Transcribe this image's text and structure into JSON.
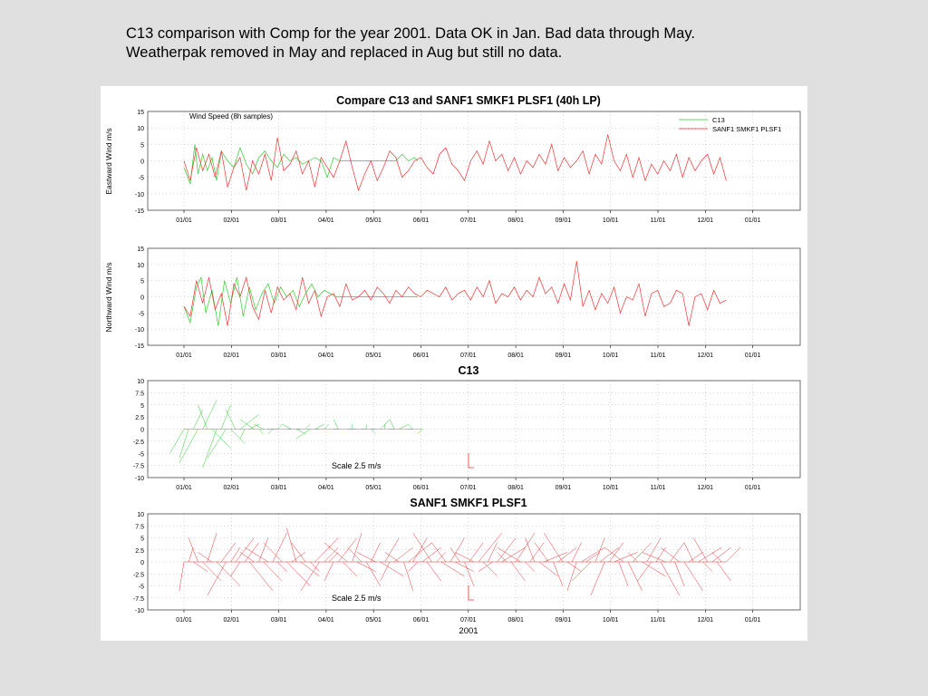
{
  "caption": {
    "line1": "C13 comparison with Comp for the year 2001. Data OK in Jan. Bad data through May.",
    "line2": "Weatherpak removed in May and replaced in Aug but still no data."
  },
  "colors": {
    "c13": "#33cc33",
    "sanf1": "#ee3333",
    "grid": "#aaaaaa"
  },
  "chart_data": [
    {
      "type": "line",
      "title": "Compare C13 and SANF1 SMKF1 PLSF1 (40h LP)",
      "annotation": "Wind Speed (8h samples)",
      "ylabel": "Eastward Wind m/s",
      "ylim": [
        -15,
        15
      ],
      "yticks": [
        "15",
        "10",
        "5",
        "0",
        "-5",
        "-10",
        "-15"
      ],
      "xticks": [
        "01/01",
        "02/01",
        "03/01",
        "04/01",
        "05/01",
        "06/01",
        "07/01",
        "08/01",
        "09/01",
        "10/01",
        "11/01",
        "12/01",
        "01/01"
      ],
      "legend_position": "top-right",
      "series": [
        {
          "name": "C13",
          "color": "#33cc33",
          "x": [
            0,
            4,
            7,
            9,
            12,
            15,
            18,
            21,
            24,
            28,
            32,
            36,
            40,
            44,
            48,
            52,
            56,
            60,
            64,
            68,
            72,
            76,
            80,
            84,
            88,
            92,
            96,
            100,
            104,
            108,
            112,
            116,
            120,
            124,
            128,
            132,
            136,
            140,
            144,
            148,
            150
          ],
          "y": [
            -2,
            -7,
            5,
            -4,
            2,
            -3,
            1,
            -6,
            3,
            0,
            -2,
            4,
            -1,
            -4,
            1,
            3,
            0,
            -2,
            2,
            0,
            1,
            -1,
            0,
            1,
            0,
            -5,
            1,
            0,
            0,
            0,
            0,
            0,
            0,
            0,
            0,
            0,
            0,
            2,
            0,
            1,
            0
          ]
        },
        {
          "name": "SANF1 SMKF1 PLSF1",
          "color": "#ee3333",
          "x": [
            0,
            4,
            8,
            12,
            16,
            20,
            24,
            28,
            32,
            36,
            40,
            44,
            48,
            52,
            56,
            60,
            64,
            68,
            72,
            76,
            80,
            84,
            88,
            92,
            96,
            100,
            104,
            108,
            112,
            116,
            120,
            124,
            128,
            132,
            136,
            140,
            144,
            148,
            152,
            156,
            160,
            164,
            168,
            172,
            176,
            180,
            184,
            188,
            192,
            196,
            200,
            204,
            208,
            212,
            216,
            220,
            224,
            228,
            232,
            236,
            240,
            244,
            248,
            252,
            256,
            260,
            264,
            268,
            272,
            276,
            280,
            284,
            288,
            292,
            296,
            300,
            304,
            308,
            312,
            316,
            320,
            324,
            328,
            332,
            336,
            340,
            344,
            348
          ],
          "y": [
            0,
            -6,
            4,
            -3,
            2,
            -5,
            3,
            -8,
            -2,
            1,
            -9,
            0,
            -4,
            2,
            -6,
            7,
            -3,
            -1,
            3,
            -4,
            0,
            -8,
            1,
            -2,
            -5,
            0,
            6,
            -2,
            -9,
            -4,
            0,
            -6,
            -2,
            3,
            1,
            -5,
            -3,
            0,
            1,
            -2,
            -4,
            2,
            4,
            -1,
            -3,
            -6,
            0,
            3,
            -1,
            6,
            0,
            2,
            -3,
            1,
            -4,
            0,
            -2,
            2,
            -1,
            5,
            -3,
            1,
            -2,
            0,
            3,
            -4,
            2,
            -1,
            8,
            0,
            -3,
            2,
            -5,
            1,
            -6,
            -1,
            -4,
            0,
            -3,
            2,
            -5,
            1,
            -3,
            0,
            2,
            -4,
            1,
            -6
          ]
        }
      ]
    },
    {
      "type": "line",
      "ylabel": "Northward Wind m/s",
      "ylim": [
        -15,
        15
      ],
      "yticks": [
        "15",
        "10",
        "5",
        "0",
        "-5",
        "-10",
        "-15"
      ],
      "xticks": [
        "01/01",
        "02/01",
        "03/01",
        "04/01",
        "05/01",
        "06/01",
        "07/01",
        "08/01",
        "09/01",
        "10/01",
        "11/01",
        "12/01",
        "01/01"
      ],
      "series": [
        {
          "name": "C13",
          "color": "#33cc33",
          "x": [
            0,
            4,
            8,
            11,
            14,
            18,
            22,
            26,
            30,
            34,
            38,
            42,
            46,
            50,
            54,
            58,
            62,
            66,
            70,
            74,
            78,
            82,
            86,
            90,
            94,
            98,
            102,
            106,
            110,
            114,
            118,
            122,
            126,
            130,
            134,
            138,
            142,
            146,
            150
          ],
          "y": [
            -3,
            -8,
            3,
            6,
            -5,
            2,
            -9,
            5,
            -2,
            6,
            -6,
            3,
            -4,
            1,
            4,
            -2,
            3,
            0,
            2,
            -3,
            1,
            4,
            0,
            2,
            1,
            0,
            0,
            0,
            0,
            0,
            0,
            0,
            0,
            0,
            0,
            0,
            0,
            0,
            0
          ]
        },
        {
          "name": "SANF1 SMKF1 PLSF1",
          "color": "#ee3333",
          "x": [
            0,
            4,
            8,
            12,
            16,
            20,
            24,
            28,
            32,
            36,
            40,
            44,
            48,
            52,
            56,
            60,
            64,
            68,
            72,
            76,
            80,
            84,
            88,
            92,
            96,
            100,
            104,
            108,
            112,
            116,
            120,
            124,
            128,
            132,
            136,
            140,
            144,
            148,
            152,
            156,
            160,
            164,
            168,
            172,
            176,
            180,
            184,
            188,
            192,
            196,
            200,
            204,
            208,
            212,
            216,
            220,
            224,
            228,
            232,
            236,
            240,
            244,
            248,
            252,
            256,
            260,
            264,
            268,
            272,
            276,
            280,
            284,
            288,
            292,
            296,
            300,
            304,
            308,
            312,
            316,
            320,
            324,
            328,
            332,
            336,
            340,
            344,
            348
          ],
          "y": [
            -3,
            -6,
            5,
            -2,
            6,
            -4,
            1,
            -9,
            4,
            0,
            6,
            -3,
            -7,
            2,
            -5,
            3,
            -1,
            1,
            -4,
            6,
            -2,
            2,
            -6,
            0,
            1,
            -3,
            4,
            -1,
            0,
            2,
            -1,
            3,
            1,
            -2,
            2,
            0,
            3,
            1,
            0,
            2,
            1,
            0,
            3,
            -1,
            1,
            2,
            -1,
            3,
            0,
            5,
            -2,
            1,
            0,
            3,
            -1,
            2,
            0,
            6,
            1,
            3,
            -2,
            4,
            -1,
            11,
            -3,
            2,
            -4,
            1,
            -2,
            3,
            -5,
            0,
            -1,
            4,
            -6,
            1,
            2,
            -3,
            -2,
            2,
            1,
            -9,
            0,
            1,
            -4,
            2,
            -2,
            -1
          ]
        }
      ]
    },
    {
      "type": "vector",
      "title": "C13",
      "scale_label": "Scale 2.5 m/s",
      "ylim": [
        -10,
        10
      ],
      "yticks": [
        "10",
        "7.5",
        "5",
        "2.5",
        "0",
        "-2.5",
        "-5",
        "-7.5",
        "-10"
      ],
      "xticks": [
        "01/01",
        "02/01",
        "03/01",
        "04/01",
        "05/01",
        "06/01",
        "07/01",
        "08/01",
        "09/01",
        "10/01",
        "11/01",
        "12/01",
        "01/01"
      ],
      "series": [
        {
          "name": "C13",
          "color": "#33cc33",
          "x": [
            0,
            3,
            6,
            9,
            12,
            15,
            18,
            21,
            24,
            27,
            30,
            33,
            36,
            39,
            42,
            45,
            48,
            51,
            54,
            57,
            60,
            63,
            66,
            69,
            72,
            75,
            78,
            81,
            84,
            87,
            90,
            93,
            96,
            99,
            102,
            105,
            108,
            111,
            114,
            117,
            120,
            123,
            126,
            129,
            132,
            135,
            138,
            141,
            144,
            147,
            150,
            153
          ],
          "u": [
            -3,
            -2,
            2,
            -4,
            3,
            -2,
            4,
            -3,
            2,
            -4,
            3,
            -2,
            4,
            -1,
            2,
            -3,
            1,
            -2,
            2,
            -1,
            1,
            0,
            1,
            -2,
            2,
            -1,
            1,
            -3,
            2,
            -1,
            1,
            0,
            1,
            -1,
            0,
            1,
            0,
            -1,
            1,
            0,
            1,
            -1,
            2,
            0,
            1,
            -1,
            2,
            0,
            1,
            -1,
            0,
            -1
          ],
          "v": [
            -5,
            -6,
            4,
            -7,
            6,
            5,
            -4,
            -8,
            5,
            -6,
            -3,
            4,
            3,
            -2,
            1,
            2,
            -1,
            1,
            0,
            -1,
            1,
            0,
            0,
            1,
            -1,
            0,
            1,
            -2,
            1,
            0,
            1,
            0,
            0,
            2,
            0,
            0,
            1,
            0,
            0,
            1,
            -1,
            0,
            2,
            1,
            0,
            2,
            1,
            0,
            0,
            1,
            0,
            -1
          ]
        }
      ]
    },
    {
      "type": "vector",
      "title": "SANF1 SMKF1 PLSF1",
      "scale_label": "Scale 2.5 m/s",
      "xlabel": "2001",
      "ylim": [
        -10,
        10
      ],
      "yticks": [
        "10",
        "7.5",
        "5",
        "2.5",
        "0",
        "-2.5",
        "-5",
        "-7.5",
        "-10"
      ],
      "xticks": [
        "01/01",
        "02/01",
        "03/01",
        "04/01",
        "05/01",
        "06/01",
        "07/01",
        "08/01",
        "09/01",
        "10/01",
        "11/01",
        "12/01",
        "01/01"
      ],
      "series": [
        {
          "name": "SANF1 SMKF1 PLSF1",
          "color": "#ee3333",
          "x": [
            0,
            3,
            6,
            9,
            12,
            15,
            18,
            21,
            24,
            27,
            30,
            33,
            36,
            39,
            42,
            45,
            48,
            51,
            54,
            57,
            60,
            63,
            66,
            69,
            72,
            75,
            78,
            81,
            84,
            87,
            90,
            93,
            96,
            99,
            102,
            105,
            108,
            111,
            114,
            117,
            120,
            123,
            126,
            129,
            132,
            135,
            138,
            141,
            144,
            147,
            150,
            153,
            156,
            159,
            162,
            165,
            168,
            171,
            174,
            177,
            180,
            183,
            186,
            189,
            192,
            195,
            198,
            201,
            204,
            207,
            210,
            213,
            216,
            219,
            222,
            225,
            228,
            231,
            234,
            237,
            240,
            243,
            246,
            249,
            252,
            255,
            258,
            261,
            264,
            267,
            270,
            273,
            276,
            279,
            282,
            285,
            288,
            291,
            294,
            297,
            300,
            303,
            306,
            309,
            312,
            315,
            318,
            321,
            324,
            327,
            330,
            333,
            336,
            339,
            342,
            345,
            348
          ],
          "u": [
            -1,
            1,
            3,
            -2,
            4,
            2,
            -3,
            5,
            3,
            -4,
            2,
            4,
            -2,
            3,
            5,
            -3,
            2,
            4,
            -5,
            3,
            2,
            -4,
            5,
            3,
            -2,
            4,
            -3,
            2,
            5,
            -4,
            3,
            2,
            -2,
            4,
            3,
            -5,
            2,
            4,
            -3,
            3,
            2,
            -4,
            5,
            3,
            -2,
            4,
            -3,
            2,
            5,
            3,
            -2,
            4,
            3,
            -4,
            2,
            5,
            -3,
            3,
            4,
            -2,
            2,
            3,
            -4,
            5,
            3,
            2,
            -3,
            4,
            5,
            -2,
            3,
            4,
            -5,
            2,
            3,
            -2,
            4,
            5,
            -3,
            2,
            4,
            -4,
            3,
            2,
            -2,
            5,
            3,
            -4,
            2,
            4,
            -3,
            3,
            5,
            2,
            -4,
            3,
            4,
            -2,
            5,
            3,
            -3,
            2,
            4,
            -5,
            3,
            2,
            -4,
            4,
            3,
            -2,
            5,
            2,
            -3,
            4,
            3,
            -2,
            3
          ],
          "v": [
            -6,
            3,
            -2,
            5,
            -4,
            6,
            2,
            -5,
            4,
            -7,
            3,
            5,
            -3,
            4,
            -6,
            2,
            5,
            -4,
            3,
            6,
            -2,
            4,
            -5,
            2,
            7,
            -3,
            4,
            -2,
            5,
            -6,
            3,
            2,
            -4,
            5,
            -3,
            4,
            6,
            -2,
            3,
            -5,
            4,
            2,
            -3,
            5,
            -4,
            3,
            2,
            -6,
            4,
            5,
            -2,
            3,
            -4,
            6,
            2,
            -3,
            4,
            5,
            -2,
            3,
            -5,
            4,
            2,
            6,
            -3,
            4,
            -2,
            5,
            3,
            2,
            -4,
            6,
            3,
            -2,
            4,
            5,
            -3,
            2,
            4,
            -5,
            3,
            6,
            -2,
            4,
            -6,
            3,
            2,
            -4,
            5,
            3,
            -7,
            4,
            2,
            -5,
            3,
            -6,
            4,
            2,
            -3,
            5,
            -4,
            3,
            -7,
            2,
            4,
            -5,
            3,
            -6,
            2,
            4,
            3,
            -2,
            5,
            3,
            -4,
            2,
            3
          ]
        }
      ]
    }
  ]
}
